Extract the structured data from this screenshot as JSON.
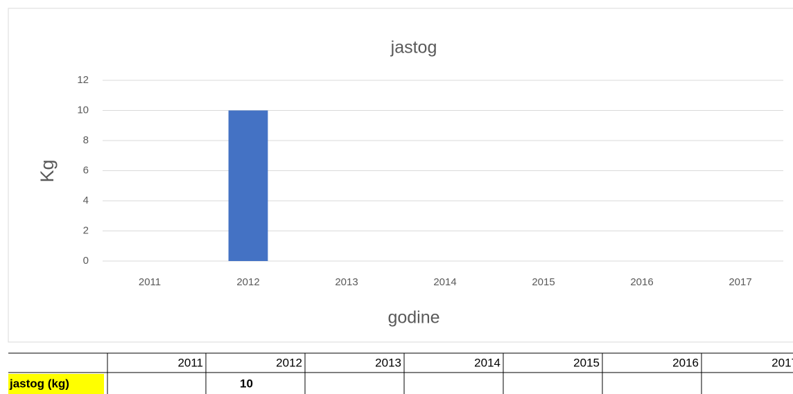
{
  "chart_data": {
    "type": "bar",
    "title": "jastog",
    "ylabel": "Kg",
    "xlabel": "godine",
    "categories": [
      "2011",
      "2012",
      "2013",
      "2014",
      "2015",
      "2016",
      "2017"
    ],
    "values": [
      null,
      10,
      null,
      null,
      null,
      null,
      null
    ],
    "color": "#4472c4",
    "ylim": [
      0,
      12
    ],
    "yticks": [
      0,
      2,
      4,
      6,
      8,
      10,
      12
    ],
    "grid": true
  },
  "table": {
    "row_label": "jastog (kg)"
  }
}
